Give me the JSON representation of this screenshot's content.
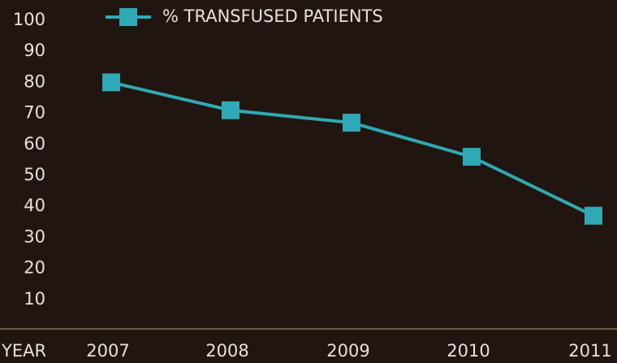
{
  "chart_data": {
    "type": "line",
    "x_label": "YEAR",
    "categories": [
      "2007",
      "2008",
      "2009",
      "2010",
      "2011"
    ],
    "series": [
      {
        "name": "% TRANSFUSED PATIENTS",
        "color": "#2fa9b5",
        "values": [
          80,
          71,
          67,
          56,
          37
        ]
      }
    ],
    "ylim": [
      0,
      100
    ],
    "yticks": [
      10,
      20,
      30,
      40,
      50,
      60,
      70,
      80,
      90,
      100
    ],
    "grid": false,
    "legend": "top"
  }
}
